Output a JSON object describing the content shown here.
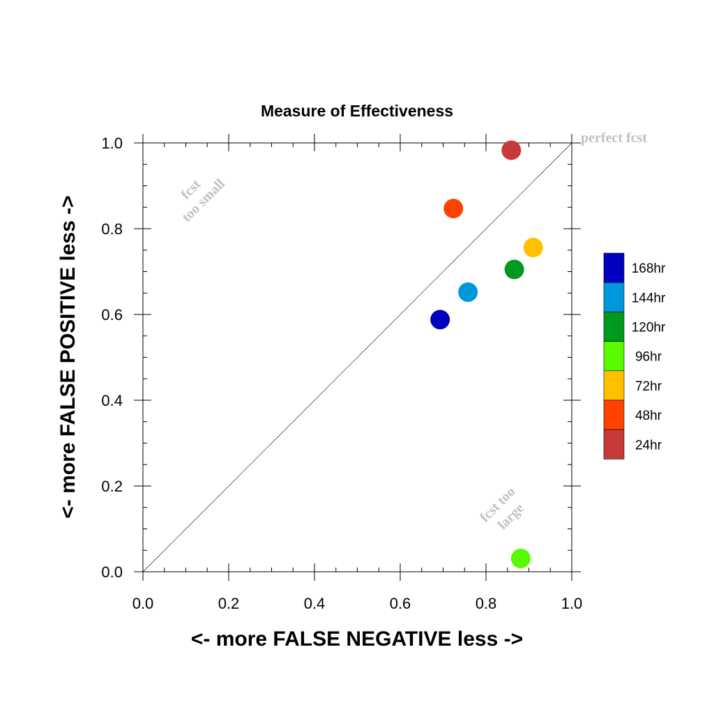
{
  "chart_data": {
    "type": "scatter",
    "title": "Measure of Effectiveness",
    "xlabel": "<- more   FALSE NEGATIVE   less ->",
    "ylabel": "<- more   FALSE POSITIVE   less ->",
    "xlim": [
      0,
      1
    ],
    "ylim": [
      0,
      1
    ],
    "xticks": [
      "0.0",
      "0.2",
      "0.4",
      "0.6",
      "0.8",
      "1.0"
    ],
    "yticks": [
      "0.0",
      "0.2",
      "0.4",
      "0.6",
      "0.8",
      "1.0"
    ],
    "grid": false,
    "legend_position": "right",
    "reference_line": {
      "from": [
        0,
        0
      ],
      "to": [
        1,
        1
      ]
    },
    "annotations": {
      "top_left": [
        "fcst",
        "too small"
      ],
      "bottom_right": [
        "fcst too",
        "large"
      ],
      "top_right": "perfect fcst"
    },
    "series": [
      {
        "name": "168hr",
        "color": "#0000c0",
        "x": 0.693,
        "y": 0.588
      },
      {
        "name": "144hr",
        "color": "#0098dc",
        "x": 0.758,
        "y": 0.652
      },
      {
        "name": "120hr",
        "color": "#009a20",
        "x": 0.866,
        "y": 0.705
      },
      {
        "name": "96hr",
        "color": "#5afa00",
        "x": 0.881,
        "y": 0.031
      },
      {
        "name": "72hr",
        "color": "#ffc000",
        "x": 0.91,
        "y": 0.756
      },
      {
        "name": "48hr",
        "color": "#ff4200",
        "x": 0.724,
        "y": 0.847
      },
      {
        "name": "24hr",
        "color": "#c83a3a",
        "x": 0.859,
        "y": 0.983
      }
    ]
  }
}
